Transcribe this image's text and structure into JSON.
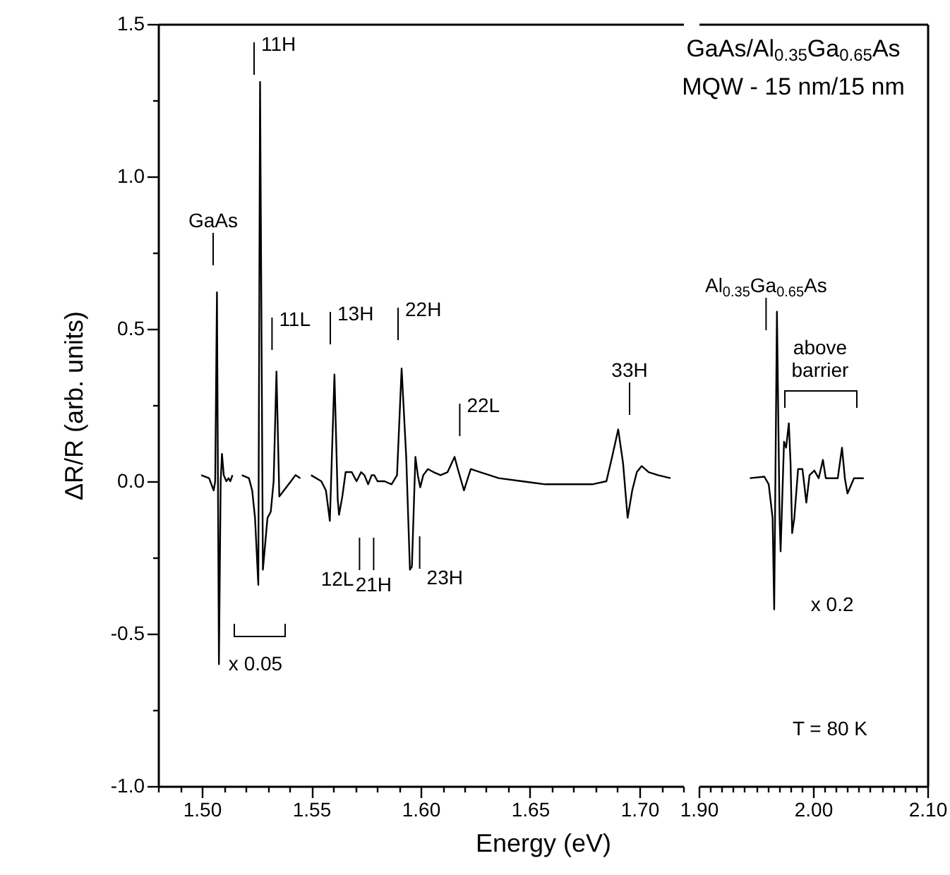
{
  "chart_data": [
    {
      "type": "line",
      "xlabel": "Energy (eV)",
      "ylabel": "ΔR/R (arb. units)",
      "xlim": [
        1.48,
        1.72
      ],
      "ylim": [
        -1,
        1.5
      ],
      "xticks": [
        {
          "value": 1.48,
          "label": null
        },
        {
          "value": 1.49,
          "label": null
        },
        {
          "value": 1.5,
          "label": "1.50"
        },
        {
          "value": 1.51,
          "label": null
        },
        {
          "value": 1.52,
          "label": null
        },
        {
          "value": 1.53,
          "label": null
        },
        {
          "value": 1.54,
          "label": null
        },
        {
          "value": 1.55,
          "label": "1.55"
        },
        {
          "value": 1.56,
          "label": null
        },
        {
          "value": 1.57,
          "label": null
        },
        {
          "value": 1.58,
          "label": null
        },
        {
          "value": 1.59,
          "label": null
        },
        {
          "value": 1.6,
          "label": "1.60"
        },
        {
          "value": 1.61,
          "label": null
        },
        {
          "value": 1.62,
          "label": null
        },
        {
          "value": 1.63,
          "label": null
        },
        {
          "value": 1.64,
          "label": null
        },
        {
          "value": 1.65,
          "label": "1.65"
        },
        {
          "value": 1.66,
          "label": null
        },
        {
          "value": 1.67,
          "label": null
        },
        {
          "value": 1.68,
          "label": null
        },
        {
          "value": 1.69,
          "label": null
        },
        {
          "value": 1.7,
          "label": "1.70"
        },
        {
          "value": 1.71,
          "label": null
        },
        {
          "value": 1.72,
          "label": null
        }
      ],
      "yticks": [
        {
          "value": -1,
          "label": "-1.0"
        },
        {
          "value": -0.75,
          "label": null
        },
        {
          "value": -0.5,
          "label": "-0.5"
        },
        {
          "value": -0.25,
          "label": null
        },
        {
          "value": 0,
          "label": "0.0"
        },
        {
          "value": 0.25,
          "label": null
        },
        {
          "value": 0.5,
          "label": "0.5"
        },
        {
          "value": 0.75,
          "label": null
        },
        {
          "value": 1,
          "label": "1.0"
        },
        {
          "value": 1.25,
          "label": null
        },
        {
          "value": 1.5,
          "label": "1.5"
        }
      ],
      "series": [
        {
          "color": "#000000",
          "x": [
            1.4997,
            1.5033,
            1.5054,
            1.5061,
            1.5069,
            1.5078,
            1.5086,
            1.5092,
            1.51,
            1.5112,
            1.5122,
            1.513,
            1.514,
            1.516,
            1.5183,
            1.5215,
            1.523,
            1.5243,
            1.5258,
            1.5266,
            1.5279,
            1.53,
            1.5315,
            1.5328,
            1.5341,
            1.5354,
            1.5375,
            1.5407,
            1.5428,
            1.545,
            1.547,
            1.5499,
            1.5546,
            1.5567,
            1.5585,
            1.5606,
            1.5621,
            1.5627,
            1.5642,
            1.5657,
            1.5685,
            1.5707,
            1.5728,
            1.5743,
            1.576,
            1.5776,
            1.5788,
            1.5803,
            1.5835,
            1.5867,
            1.5892,
            1.5913,
            1.5934,
            1.5951,
            1.596,
            1.5976,
            1.5987,
            1.5998,
            1.6012,
            1.6033,
            1.6059,
            1.6091,
            1.6123,
            1.6155,
            1.617,
            1.6198,
            1.6229,
            1.6272,
            1.6357,
            1.6463,
            1.657,
            1.6677,
            1.6784,
            1.6849,
            1.6875,
            1.6903,
            1.6925,
            1.6946,
            1.6967,
            1.6988,
            1.701,
            1.7042,
            1.7085,
            1.7142
          ],
          "values": [
            0.02,
            0.01,
            -0.03,
            0.0,
            0.62,
            -0.6,
            0.0,
            0.09,
            0.02,
            0.0,
            0.01,
            0.0,
            0.02,
            null,
            0.02,
            0.01,
            -0.03,
            -0.12,
            -0.34,
            1.31,
            -0.29,
            -0.12,
            -0.1,
            0.0,
            0.36,
            -0.05,
            -0.03,
            0.0,
            0.02,
            0.01,
            null,
            0.02,
            0.0,
            -0.03,
            -0.13,
            0.35,
            -0.06,
            -0.11,
            -0.05,
            0.03,
            0.03,
            0.0,
            0.03,
            0.02,
            -0.01,
            0.02,
            0.02,
            0.0,
            0.0,
            -0.01,
            0.02,
            0.37,
            0.08,
            -0.29,
            -0.28,
            0.08,
            0.02,
            -0.02,
            0.02,
            0.04,
            0.03,
            0.02,
            0.03,
            0.08,
            0.04,
            -0.03,
            0.04,
            0.03,
            0.01,
            0.0,
            -0.01,
            -0.01,
            -0.01,
            0.0,
            0.08,
            0.17,
            0.06,
            -0.12,
            -0.03,
            0.03,
            0.05,
            0.03,
            0.02,
            0.01
          ]
        }
      ],
      "annotations": [
        "GaAs",
        "11H",
        "11L",
        "13H",
        "22H",
        "22L",
        "33H",
        "12L",
        "21H",
        "23H",
        "x 0.05"
      ]
    },
    {
      "type": "line",
      "title": "GaAs/Al$_{0.35}$Ga$_{0.65}$As",
      "subtitle": "MQW - 15 nm/15 nm",
      "xlim": [
        1.9,
        2.1
      ],
      "ylim": [
        -1,
        1.5
      ],
      "tick_labels": "x",
      "xticks": [
        {
          "value": 1.9,
          "label": "1.90"
        },
        {
          "value": 1.91,
          "label": null
        },
        {
          "value": 1.92,
          "label": null
        },
        {
          "value": 1.93,
          "label": null
        },
        {
          "value": 1.94,
          "label": null
        },
        {
          "value": 1.95,
          "label": null
        },
        {
          "value": 1.96,
          "label": null
        },
        {
          "value": 1.97,
          "label": null
        },
        {
          "value": 1.98,
          "label": null
        },
        {
          "value": 1.99,
          "label": null
        },
        {
          "value": 2,
          "label": "2.00"
        },
        {
          "value": 2.01,
          "label": null
        },
        {
          "value": 2.02,
          "label": null
        },
        {
          "value": 2.03,
          "label": null
        },
        {
          "value": 2.04,
          "label": null
        },
        {
          "value": 2.05,
          "label": null
        },
        {
          "value": 2.06,
          "label": null
        },
        {
          "value": 2.07,
          "label": null
        },
        {
          "value": 2.08,
          "label": null
        },
        {
          "value": 2.09,
          "label": null
        },
        {
          "value": 2.1,
          "label": "2.10"
        }
      ],
      "series": [
        {
          "color": "#000000",
          "x": [
            1.9447,
            1.9574,
            1.9612,
            1.9646,
            1.966,
            1.9684,
            1.9707,
            1.9716,
            1.9746,
            1.9764,
            1.9788,
            1.9803,
            1.9817,
            1.9836,
            1.9869,
            1.9907,
            1.9941,
            1.9969,
            2.0011,
            2.0049,
            2.0086,
            2.0111,
            2.0168,
            2.0216,
            2.0253,
            2.0278,
            2.0301,
            2.0358,
            2.0443
          ],
          "values": [
            0.01,
            0.015,
            -0.01,
            -0.12,
            -0.42,
            0.556,
            -0.12,
            -0.23,
            0.13,
            0.11,
            0.19,
            0.06,
            -0.17,
            -0.12,
            0.04,
            0.04,
            -0.07,
            0.02,
            0.035,
            0.01,
            0.07,
            0.01,
            0.01,
            0.01,
            0.11,
            0.01,
            -0.04,
            0.01,
            0.01
          ]
        }
      ],
      "annotations": [
        "Al$_{0.35}$Ga$_{0.65}$As",
        "above\nbarrier",
        "x 0.2",
        "T = 80 K"
      ]
    }
  ]
}
